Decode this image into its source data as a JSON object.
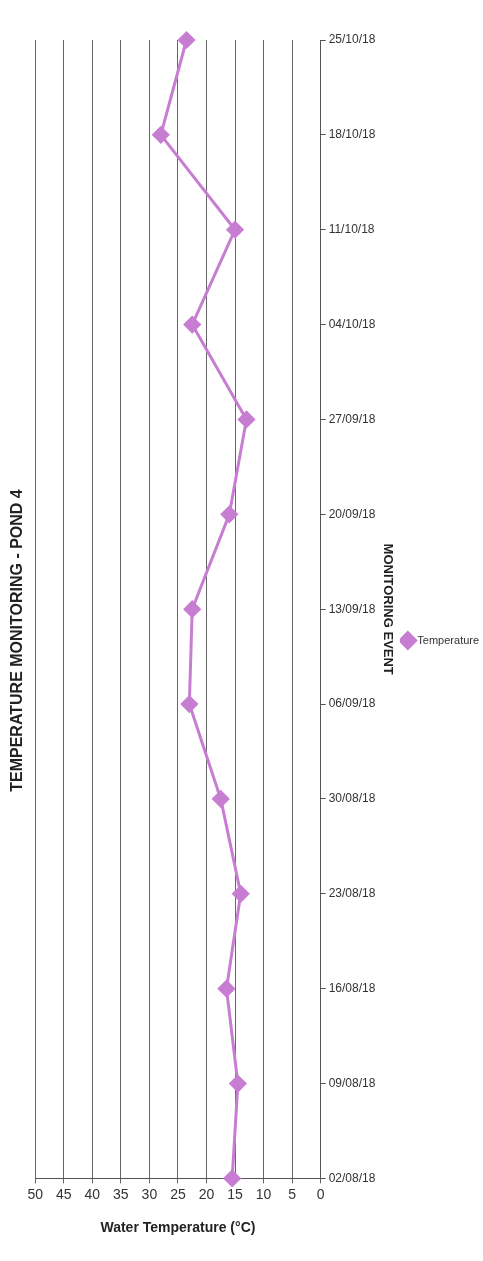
{
  "chart_data": {
    "type": "line",
    "orientation": "horizontal",
    "title": "TEMPERATURE MONITORING - POND 4",
    "xlabel": "Water Temperature (°C)",
    "ylabel": "MONITORING EVENT",
    "categories": [
      "25/10/18",
      "18/10/18",
      "11/10/18",
      "04/10/18",
      "27/09/18",
      "20/09/18",
      "13/09/18",
      "06/09/18",
      "30/08/18",
      "23/08/18",
      "16/08/18",
      "09/08/18",
      "02/08/18"
    ],
    "series": [
      {
        "name": "Temperature",
        "color": "#c77dd1",
        "values": [
          23.5,
          28,
          15,
          22.5,
          13,
          16,
          22.5,
          23,
          17.5,
          14,
          16.5,
          14.5,
          15.5
        ]
      }
    ],
    "xlim": [
      50,
      0
    ],
    "xticks": [
      50,
      45,
      40,
      35,
      30,
      25,
      20,
      15,
      10,
      5,
      0
    ],
    "grid": "x",
    "legend": "right",
    "marker": "diamond"
  }
}
